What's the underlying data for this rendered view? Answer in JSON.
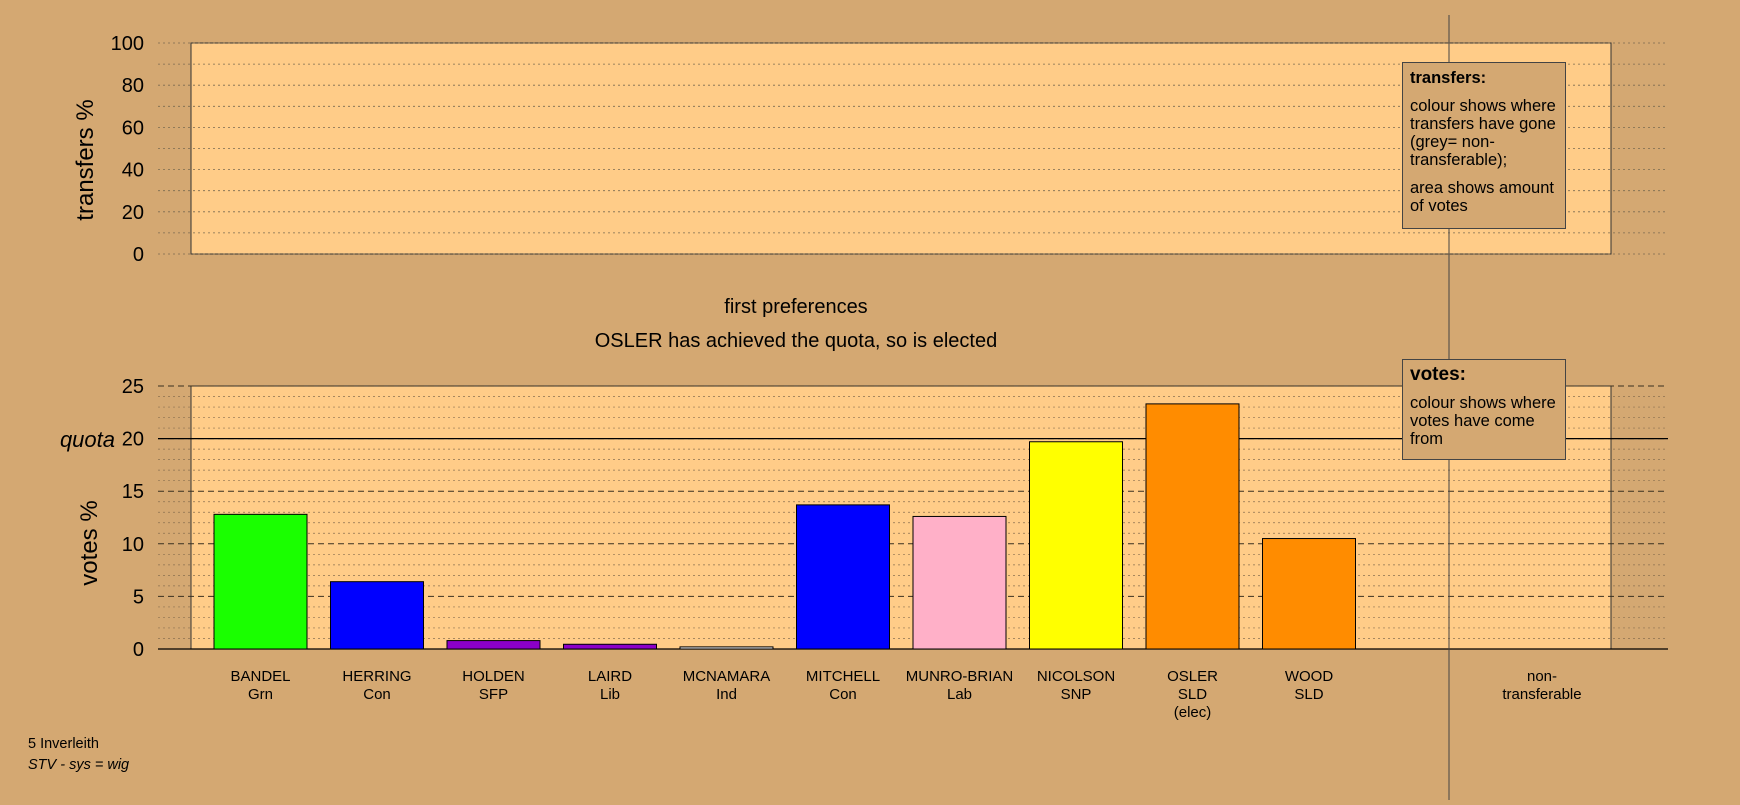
{
  "chart_data": [
    {
      "type": "bar",
      "title": "first preferences",
      "ylabel": "transfers %",
      "ylim": [
        0,
        100
      ],
      "yticks": [
        0,
        20,
        40,
        60,
        80,
        100
      ],
      "series": []
    },
    {
      "type": "bar",
      "title": "OSLER has achieved the quota, so is elected",
      "ylabel": "votes %",
      "ylim": [
        0,
        25
      ],
      "yticks": [
        0,
        5,
        10,
        15,
        20,
        25
      ],
      "quota": {
        "label": "quota",
        "value": 20
      },
      "categories": [
        {
          "name": "BANDEL",
          "party": "Grn",
          "note": "",
          "value": 12.8,
          "color": "#1aff00"
        },
        {
          "name": "HERRING",
          "party": "Con",
          "note": "",
          "value": 6.4,
          "color": "#0000ff"
        },
        {
          "name": "HOLDEN",
          "party": "SFP",
          "note": "",
          "value": 0.8,
          "color": "#8b00c8"
        },
        {
          "name": "LAIRD",
          "party": "Lib",
          "note": "",
          "value": 0.45,
          "color": "#8b00c8"
        },
        {
          "name": "MCNAMARA",
          "party": "Ind",
          "note": "",
          "value": 0.2,
          "color": "#e8e8e8"
        },
        {
          "name": "MITCHELL",
          "party": "Con",
          "note": "",
          "value": 13.7,
          "color": "#0000ff"
        },
        {
          "name": "MUNRO-BRIAN",
          "party": "Lab",
          "note": "",
          "value": 12.6,
          "color": "#ffb0c8"
        },
        {
          "name": "NICOLSON",
          "party": "SNP",
          "note": "",
          "value": 19.7,
          "color": "#ffff00"
        },
        {
          "name": "OSLER",
          "party": "SLD",
          "note": "(elec)",
          "value": 23.3,
          "color": "#ff8c00"
        },
        {
          "name": "WOOD",
          "party": "SLD",
          "note": "",
          "value": 10.5,
          "color": "#ff8c00"
        }
      ],
      "nontransferable": {
        "label1": "non-",
        "label2": "transferable",
        "value": 0
      }
    }
  ],
  "legend_transfers": {
    "title": "transfers:",
    "p1": "colour shows where transfers have gone (grey= non-transferable);",
    "p2": "area shows amount of votes"
  },
  "legend_votes": {
    "title": "votes:",
    "p1": "colour shows where votes have come from"
  },
  "footer": {
    "line1": "5 Inverleith",
    "line2": "STV - sys = wig"
  }
}
